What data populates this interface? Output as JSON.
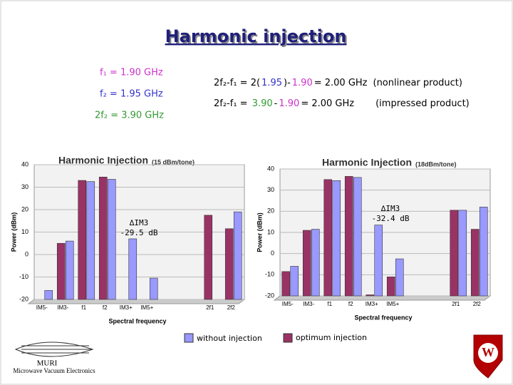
{
  "slide": {
    "title": "Harmonic injection",
    "params": [
      {
        "text": "f₁ = 1.90 GHz",
        "color": "#cc33cc"
      },
      {
        "text": "f₂ = 1.95 GHz",
        "color": "#3333cc"
      },
      {
        "text": "2f₂ = 3.90 GHz",
        "color": "#339933"
      }
    ],
    "equations": [
      [
        {
          "text": "2f₂-f₁ = 2(",
          "color": "#000000"
        },
        {
          "text": "1.95",
          "color": "#3333cc"
        },
        {
          "text": ")-",
          "color": "#000000"
        },
        {
          "text": "1.90",
          "color": "#cc33cc"
        },
        {
          "text": "= 2.00 GHz",
          "color": "#000000"
        },
        {
          "text": "(nonlinear product)",
          "color": "#000000"
        }
      ],
      [
        {
          "text": "2f₂-f₁ = ",
          "color": "#000000"
        },
        {
          "text": "3.90",
          "color": "#339933"
        },
        {
          "text": "-",
          "color": "#000000"
        },
        {
          "text": "1.90",
          "color": "#cc33cc"
        },
        {
          "text": "= 2.00 GHz",
          "color": "#000000"
        },
        {
          "text": "(impressed product)",
          "color": "#000000"
        }
      ]
    ],
    "logo_left": [
      "MURI",
      "Microwave Vacuum Electronics"
    ],
    "logo_right": "W"
  },
  "chart_data": [
    {
      "type": "bar",
      "title": "Harmonic Injection",
      "subtitle": "(15 dBm/tone)",
      "x_label": "Spectral frequency",
      "y_label": "Power (dBm)",
      "categories": [
        "IM5-",
        "IM3-",
        "f1",
        "f2",
        "IM3+",
        "IM5+",
        null,
        null,
        "2f1",
        "2f2"
      ],
      "series": [
        {
          "name": "optimum injection",
          "color": "#993366",
          "values": [
            -20,
            5,
            33,
            34.5,
            -20,
            -20,
            null,
            null,
            17.5,
            11.5
          ]
        },
        {
          "name": "without injection",
          "color": "#9999ff",
          "values": [
            -16,
            6,
            32.5,
            33.5,
            7,
            -10.5,
            null,
            null,
            -20,
            19
          ]
        }
      ],
      "ylim": [
        -20,
        40
      ],
      "yticks": [
        -20,
        -10,
        0,
        10,
        20,
        30,
        40
      ],
      "annotations": [
        "∆IM3",
        "-29.5 dB"
      ]
    },
    {
      "type": "bar",
      "title": "Harmonic Injection",
      "subtitle": "(18dBm/tone)",
      "x_label": "Spectral frequency",
      "y_label": "Power (dBm)",
      "categories": [
        "IM5-",
        "IM3-",
        "f1",
        "f2",
        "IM3+",
        "IM5+",
        null,
        null,
        "2f1",
        "2f2"
      ],
      "series": [
        {
          "name": "optimum injection",
          "color": "#993366",
          "values": [
            -8.5,
            11,
            35,
            36.5,
            -19.5,
            -11,
            null,
            null,
            20.5,
            11.5
          ]
        },
        {
          "name": "without injection",
          "color": "#9999ff",
          "values": [
            -6,
            11.5,
            34.5,
            36,
            13.5,
            -2.5,
            null,
            null,
            20.5,
            22
          ]
        }
      ],
      "ylim": [
        -20,
        40
      ],
      "yticks": [
        -20,
        -10,
        0,
        10,
        20,
        30,
        40
      ],
      "annotations": [
        "∆IM3",
        "-32.4 dB"
      ]
    }
  ]
}
